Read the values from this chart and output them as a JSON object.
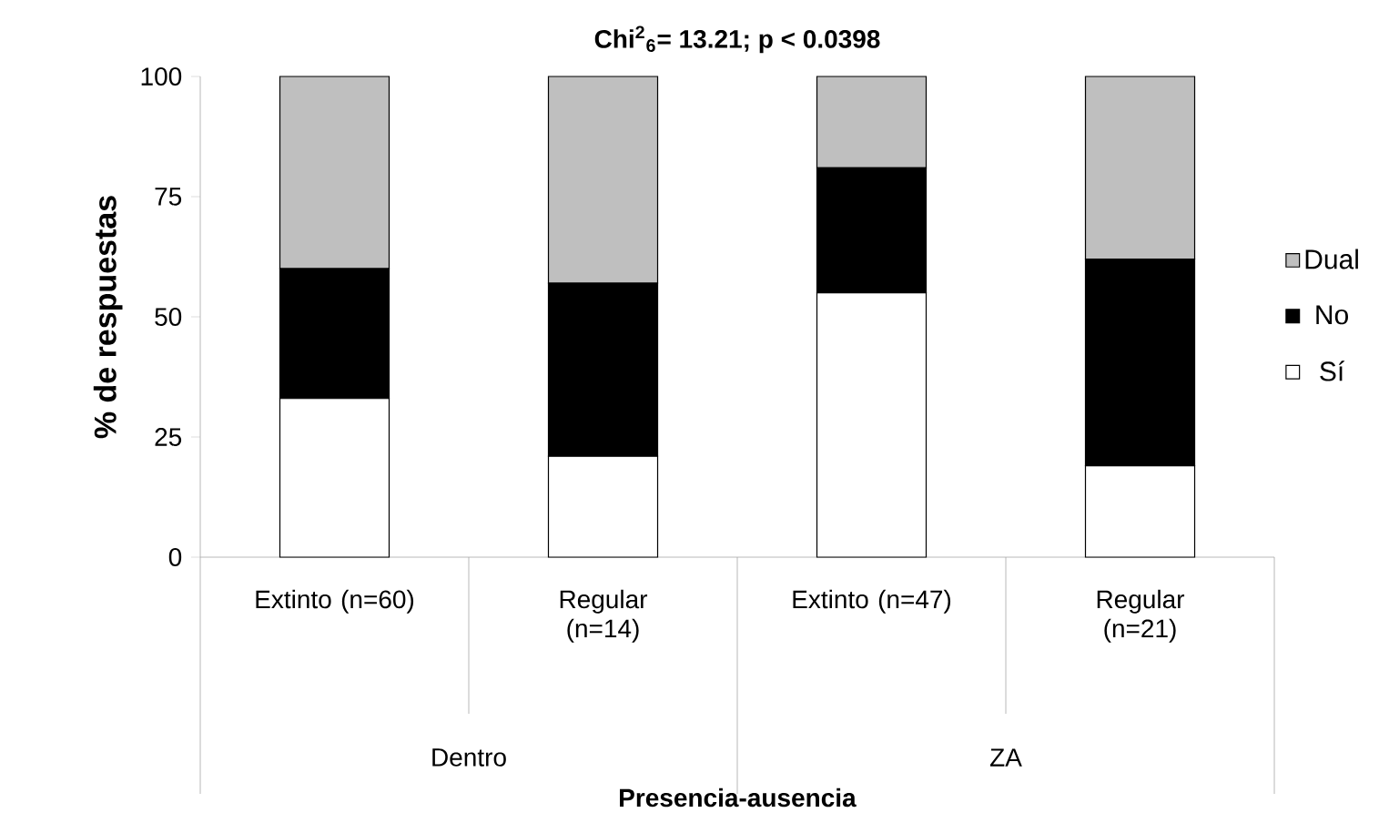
{
  "chart_data": {
    "type": "bar",
    "stacked": true,
    "title": "Chi$^{2}$$_{6}$= 13.21; p < 0.0398",
    "categories": [
      "Extinto (n=60)",
      "Regular (n=14)",
      "Extinto (n=47)",
      "Regular (n=21)"
    ],
    "annotations": [
      "Dentro",
      "ZA",
      "**Presencia-ausencia**"
    ],
    "ylabel": "% de respuestas",
    "series": [
      {
        "name": "Sí",
        "color": "#ffffff",
        "values": [
          33,
          21,
          55,
          19
        ]
      },
      {
        "name": "No",
        "color": "#000000",
        "values": [
          27,
          36,
          26,
          43
        ]
      },
      {
        "name": "Dual",
        "color": "#bfbfbf",
        "values": [
          40,
          43,
          19,
          38
        ]
      }
    ],
    "ylim": [
      0,
      100
    ],
    "yticks": [
      0,
      25,
      50,
      75,
      100
    ],
    "legend": "right"
  }
}
